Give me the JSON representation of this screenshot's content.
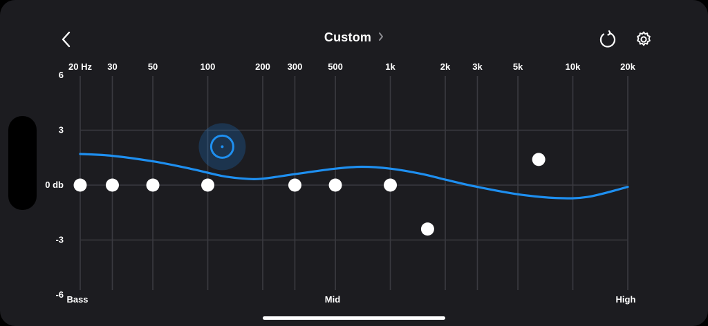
{
  "header": {
    "title": "Custom",
    "back_icon": "chevron-left-icon",
    "title_chevron_icon": "chevron-right-icon",
    "reset_icon": "reset-icon",
    "settings_icon": "gear-icon"
  },
  "colors": {
    "background": "#1c1c20",
    "curve": "#1e8ff0",
    "grid": "#3a3a40",
    "band_handle": "#ffffff",
    "selected_handle": "#1e8ff0"
  },
  "frequency_labels": [
    "20 Hz",
    "30",
    "50",
    "100",
    "200",
    "300",
    "500",
    "1k",
    "2k",
    "3k",
    "5k",
    "10k",
    "20k"
  ],
  "db_labels": [
    "6",
    "3",
    "0 db",
    "-3",
    "-6"
  ],
  "range_labels": {
    "low": "Bass",
    "mid": "Mid",
    "high": "High"
  },
  "chart_data": {
    "type": "line",
    "x_scale": "log",
    "xlim_hz": [
      20,
      20000
    ],
    "ylim_db": [
      -6,
      6
    ],
    "grid": true,
    "bands": [
      {
        "freq_hz": 20,
        "gain_db": 0
      },
      {
        "freq_hz": 30,
        "gain_db": 0
      },
      {
        "freq_hz": 50,
        "gain_db": 0
      },
      {
        "freq_hz": 100,
        "gain_db": 0
      },
      {
        "freq_hz": 120,
        "gain_db": 2.1,
        "selected": true
      },
      {
        "freq_hz": 300,
        "gain_db": 0
      },
      {
        "freq_hz": 500,
        "gain_db": 0
      },
      {
        "freq_hz": 1000,
        "gain_db": 0
      },
      {
        "freq_hz": 1600,
        "gain_db": -2.4
      },
      {
        "freq_hz": 6500,
        "gain_db": 1.4
      }
    ],
    "curve": {
      "freq_hz": [
        20,
        30,
        50,
        80,
        120,
        160,
        200,
        300,
        500,
        700,
        1000,
        1500,
        2000,
        3000,
        5000,
        8000,
        12000,
        20000
      ],
      "gain_db": [
        1.7,
        1.6,
        1.3,
        0.9,
        0.5,
        0.35,
        0.35,
        0.6,
        0.9,
        1.0,
        0.9,
        0.6,
        0.3,
        -0.1,
        -0.5,
        -0.7,
        -0.65,
        -0.1
      ]
    }
  }
}
